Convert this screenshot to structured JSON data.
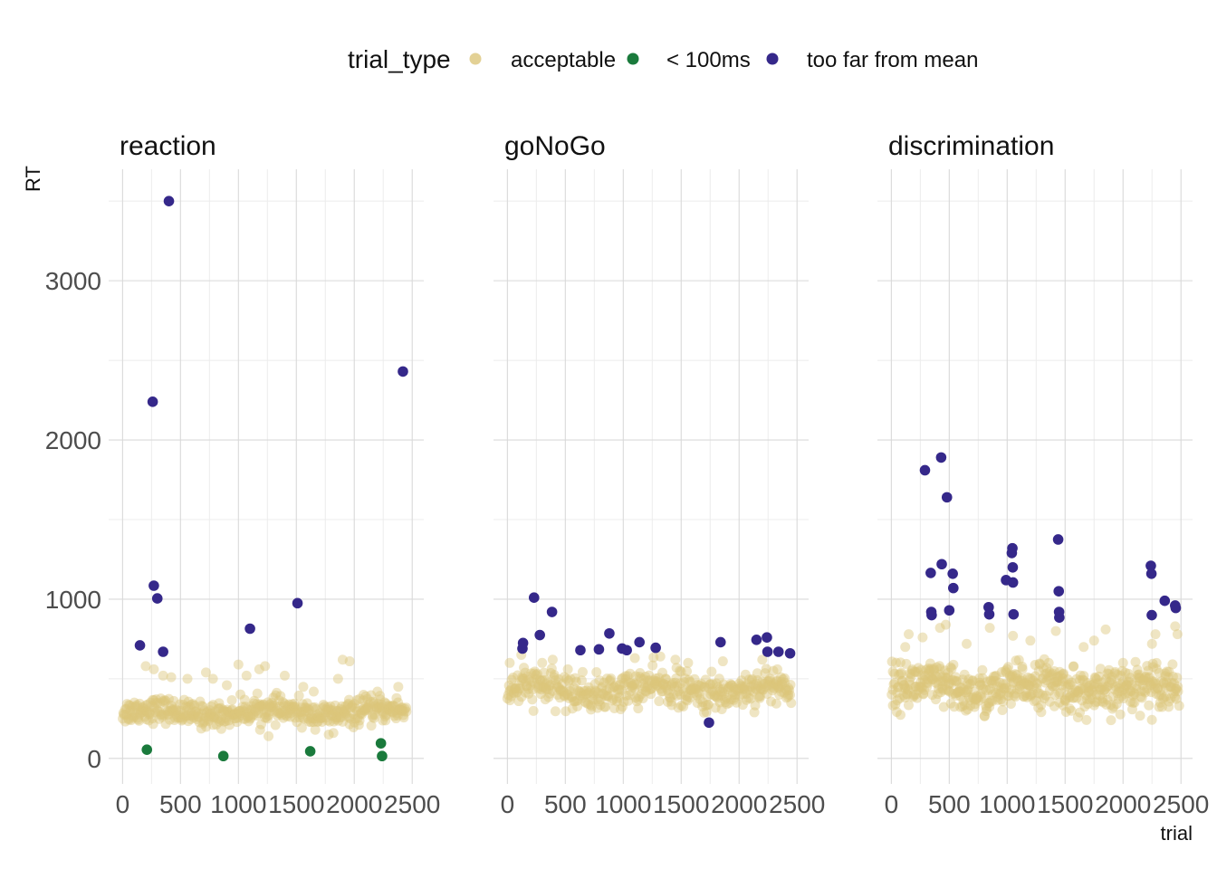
{
  "chart_data": {
    "type": "scatter",
    "xlabel": "trial",
    "ylabel": "RT",
    "xlim": [
      -120,
      2600
    ],
    "ylim": [
      -160,
      3700
    ],
    "x_ticks": [
      0,
      500,
      1000,
      1500,
      2000,
      2500
    ],
    "y_ticks": [
      0,
      1000,
      2000,
      3000
    ],
    "grid": true,
    "legend": {
      "title": "trial_type",
      "position": "top",
      "items": [
        {
          "label": "acceptable",
          "color": "#dcc67a"
        },
        {
          "label": "< 100ms",
          "color": "#1a7a3c"
        },
        {
          "label": "too far from mean",
          "color": "#35288a"
        }
      ]
    },
    "facets": [
      {
        "title": "reaction",
        "acceptable_band": {
          "x_start": 0,
          "x_end": 2450,
          "rt_center": 290,
          "rt_spread": 55,
          "count": 480,
          "outliers": [
            [
              200,
              580
            ],
            [
              270,
              560
            ],
            [
              350,
              520
            ],
            [
              420,
              510
            ],
            [
              560,
              500
            ],
            [
              720,
              540
            ],
            [
              780,
              500
            ],
            [
              900,
              460
            ],
            [
              1000,
              590
            ],
            [
              1070,
              520
            ],
            [
              1180,
              560
            ],
            [
              1230,
              580
            ],
            [
              1260,
              140
            ],
            [
              1400,
              520
            ],
            [
              1560,
              450
            ],
            [
              1650,
              420
            ],
            [
              1780,
              150
            ],
            [
              1820,
              160
            ],
            [
              1860,
              500
            ],
            [
              1900,
              620
            ],
            [
              1960,
              610
            ],
            [
              2080,
              400
            ],
            [
              2200,
              420
            ],
            [
              2380,
              450
            ]
          ]
        },
        "outlier_points": [
          {
            "trial": 150,
            "rt": 710,
            "type": "too far from mean"
          },
          {
            "trial": 260,
            "rt": 2240,
            "type": "too far from mean"
          },
          {
            "trial": 270,
            "rt": 1085,
            "type": "too far from mean"
          },
          {
            "trial": 300,
            "rt": 1005,
            "type": "too far from mean"
          },
          {
            "trial": 350,
            "rt": 670,
            "type": "too far from mean"
          },
          {
            "trial": 400,
            "rt": 3500,
            "type": "too far from mean"
          },
          {
            "trial": 1100,
            "rt": 815,
            "type": "too far from mean"
          },
          {
            "trial": 1510,
            "rt": 975,
            "type": "too far from mean"
          },
          {
            "trial": 2420,
            "rt": 2430,
            "type": "too far from mean"
          },
          {
            "trial": 210,
            "rt": 55,
            "type": "< 100ms"
          },
          {
            "trial": 870,
            "rt": 15,
            "type": "< 100ms"
          },
          {
            "trial": 1620,
            "rt": 45,
            "type": "< 100ms"
          },
          {
            "trial": 2230,
            "rt": 95,
            "type": "< 100ms"
          },
          {
            "trial": 2240,
            "rt": 15,
            "type": "< 100ms"
          }
        ]
      },
      {
        "title": "goNoGo",
        "acceptable_band": {
          "x_start": 0,
          "x_end": 2450,
          "rt_center": 430,
          "rt_spread": 80,
          "count": 460,
          "outliers": [
            [
              20,
              600
            ],
            [
              120,
              650
            ],
            [
              300,
              600
            ],
            [
              1100,
              630
            ],
            [
              1320,
              640
            ],
            [
              1450,
              620
            ],
            [
              1560,
              600
            ],
            [
              1860,
              610
            ],
            [
              2200,
              620
            ],
            [
              2330,
              560
            ]
          ]
        },
        "outlier_points": [
          {
            "trial": 130,
            "rt": 690,
            "type": "too far from mean"
          },
          {
            "trial": 135,
            "rt": 725,
            "type": "too far from mean"
          },
          {
            "trial": 230,
            "rt": 1010,
            "type": "too far from mean"
          },
          {
            "trial": 280,
            "rt": 775,
            "type": "too far from mean"
          },
          {
            "trial": 385,
            "rt": 920,
            "type": "too far from mean"
          },
          {
            "trial": 630,
            "rt": 680,
            "type": "too far from mean"
          },
          {
            "trial": 790,
            "rt": 685,
            "type": "too far from mean"
          },
          {
            "trial": 880,
            "rt": 785,
            "type": "too far from mean"
          },
          {
            "trial": 990,
            "rt": 690,
            "type": "too far from mean"
          },
          {
            "trial": 1030,
            "rt": 680,
            "type": "too far from mean"
          },
          {
            "trial": 1140,
            "rt": 730,
            "type": "too far from mean"
          },
          {
            "trial": 1280,
            "rt": 695,
            "type": "too far from mean"
          },
          {
            "trial": 1740,
            "rt": 225,
            "type": "too far from mean"
          },
          {
            "trial": 1840,
            "rt": 730,
            "type": "too far from mean"
          },
          {
            "trial": 2150,
            "rt": 745,
            "type": "too far from mean"
          },
          {
            "trial": 2240,
            "rt": 760,
            "type": "too far from mean"
          },
          {
            "trial": 2245,
            "rt": 670,
            "type": "too far from mean"
          },
          {
            "trial": 2340,
            "rt": 670,
            "type": "too far from mean"
          },
          {
            "trial": 2440,
            "rt": 660,
            "type": "too far from mean"
          }
        ]
      },
      {
        "title": "discrimination",
        "acceptable_band": {
          "x_start": 0,
          "x_end": 2480,
          "rt_center": 440,
          "rt_spread": 100,
          "count": 560,
          "outliers": [
            [
              120,
              700
            ],
            [
              150,
              780
            ],
            [
              270,
              760
            ],
            [
              420,
              820
            ],
            [
              470,
              840
            ],
            [
              650,
              720
            ],
            [
              850,
              820
            ],
            [
              1050,
              770
            ],
            [
              1200,
              740
            ],
            [
              1420,
              800
            ],
            [
              1660,
              700
            ],
            [
              1750,
              740
            ],
            [
              1850,
              810
            ],
            [
              2250,
              720
            ],
            [
              2450,
              830
            ],
            [
              2470,
              780
            ],
            [
              2280,
              780
            ],
            [
              2000,
              600
            ]
          ]
        },
        "outlier_points": [
          {
            "trial": 290,
            "rt": 1810,
            "type": "too far from mean"
          },
          {
            "trial": 340,
            "rt": 1165,
            "type": "too far from mean"
          },
          {
            "trial": 345,
            "rt": 920,
            "type": "too far from mean"
          },
          {
            "trial": 348,
            "rt": 900,
            "type": "too far from mean"
          },
          {
            "trial": 430,
            "rt": 1890,
            "type": "too far from mean"
          },
          {
            "trial": 435,
            "rt": 1220,
            "type": "too far from mean"
          },
          {
            "trial": 480,
            "rt": 1640,
            "type": "too far from mean"
          },
          {
            "trial": 500,
            "rt": 930,
            "type": "too far from mean"
          },
          {
            "trial": 530,
            "rt": 1160,
            "type": "too far from mean"
          },
          {
            "trial": 535,
            "rt": 1070,
            "type": "too far from mean"
          },
          {
            "trial": 840,
            "rt": 950,
            "type": "too far from mean"
          },
          {
            "trial": 845,
            "rt": 905,
            "type": "too far from mean"
          },
          {
            "trial": 990,
            "rt": 1120,
            "type": "too far from mean"
          },
          {
            "trial": 1040,
            "rt": 1290,
            "type": "too far from mean"
          },
          {
            "trial": 1045,
            "rt": 1320,
            "type": "too far from mean"
          },
          {
            "trial": 1048,
            "rt": 1200,
            "type": "too far from mean"
          },
          {
            "trial": 1050,
            "rt": 1105,
            "type": "too far from mean"
          },
          {
            "trial": 1055,
            "rt": 905,
            "type": "too far from mean"
          },
          {
            "trial": 1440,
            "rt": 1375,
            "type": "too far from mean"
          },
          {
            "trial": 1445,
            "rt": 1050,
            "type": "too far from mean"
          },
          {
            "trial": 1448,
            "rt": 920,
            "type": "too far from mean"
          },
          {
            "trial": 1450,
            "rt": 885,
            "type": "too far from mean"
          },
          {
            "trial": 2240,
            "rt": 1210,
            "type": "too far from mean"
          },
          {
            "trial": 2245,
            "rt": 1160,
            "type": "too far from mean"
          },
          {
            "trial": 2248,
            "rt": 900,
            "type": "too far from mean"
          },
          {
            "trial": 2360,
            "rt": 990,
            "type": "too far from mean"
          },
          {
            "trial": 2450,
            "rt": 960,
            "type": "too far from mean"
          },
          {
            "trial": 2455,
            "rt": 945,
            "type": "too far from mean"
          }
        ]
      }
    ]
  }
}
